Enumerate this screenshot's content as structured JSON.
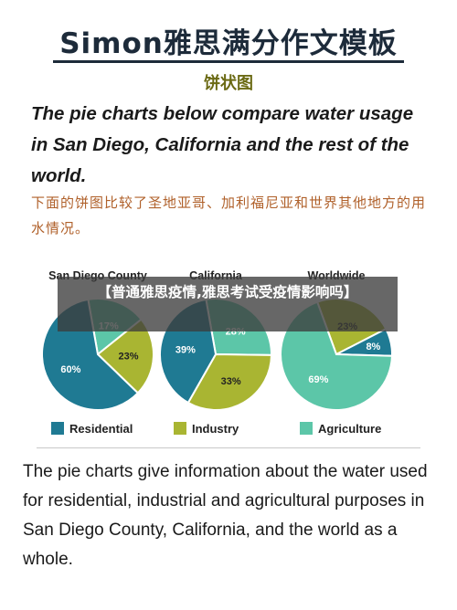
{
  "header": {
    "title": "Simon雅思满分作文模板",
    "subtitle": "饼状图"
  },
  "prompt": {
    "english": "The pie charts below compare water usage in San Diego, California and the rest of the world.",
    "chinese": "下面的饼图比较了圣地亚哥、加利福尼亚和世界其他地方的用水情况。"
  },
  "overlay": {
    "text": "【普通雅思疫情,雅思考试受疫情影响吗】"
  },
  "chart_data": {
    "type": "pie",
    "legend_placement": "bottom",
    "legend": [
      {
        "name": "Residential",
        "color": "#1f7a93"
      },
      {
        "name": "Industry",
        "color": "#a9b532"
      },
      {
        "name": "Agriculture",
        "color": "#5cc6a8"
      }
    ],
    "charts": [
      {
        "title": "San Diego County",
        "values": [
          60,
          23,
          17
        ],
        "labels": [
          "60%",
          "23%",
          "17%"
        ]
      },
      {
        "title": "California",
        "values": [
          39,
          33,
          28
        ],
        "labels": [
          "39%",
          "33%",
          "28%"
        ]
      },
      {
        "title": "Worldwide",
        "values": [
          8,
          23,
          69
        ],
        "labels": [
          "8%",
          "23%",
          "69%"
        ]
      }
    ]
  },
  "description": {
    "text": "The pie charts give information about the water used for residential, industrial and agricultural purposes in San Diego County, California, and the world as a whole."
  }
}
